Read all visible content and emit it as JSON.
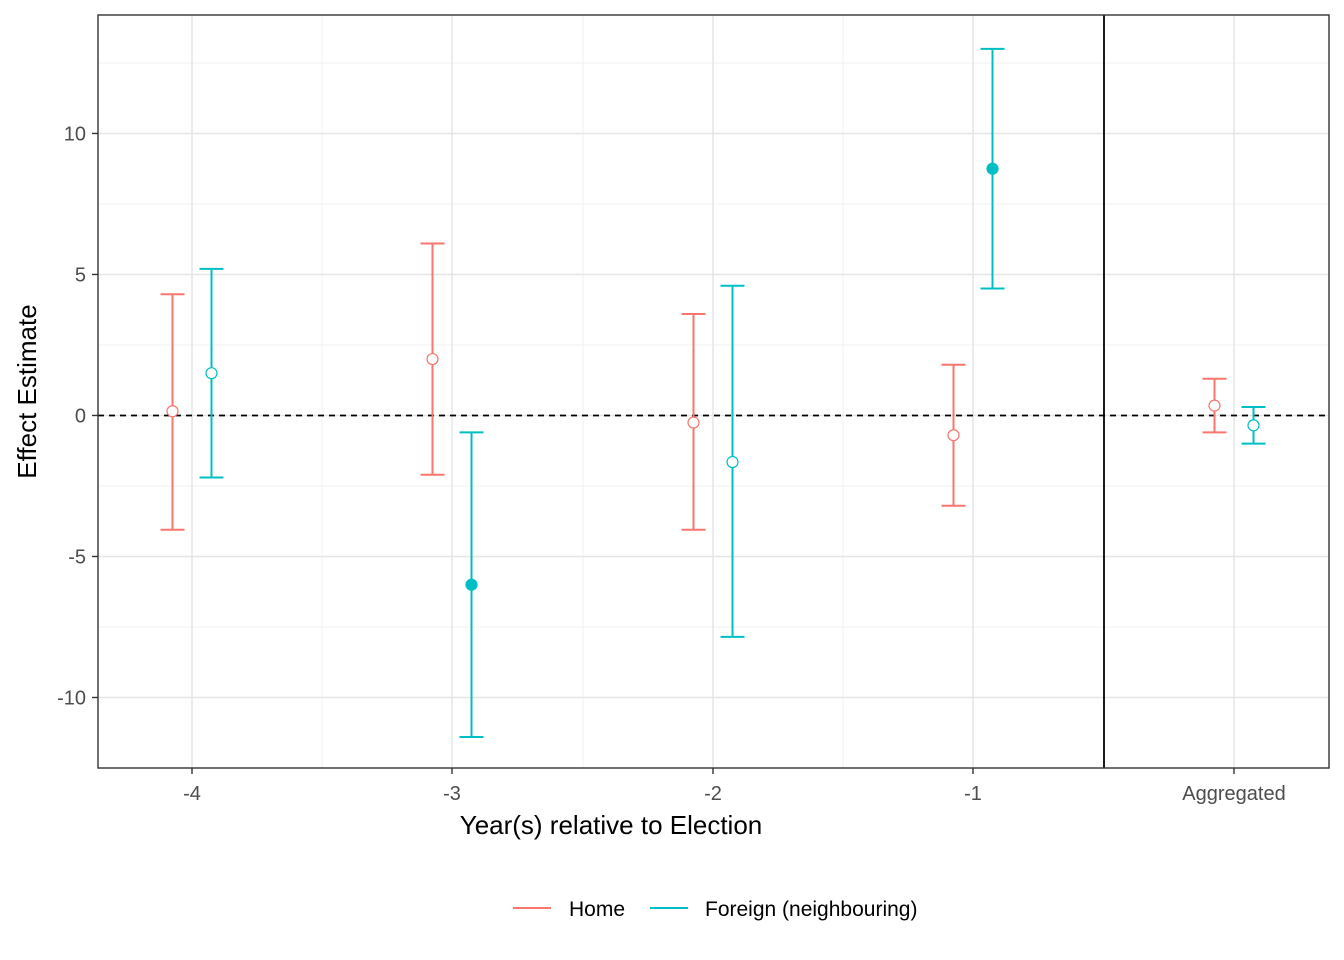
{
  "chart_data": {
    "type": "errorbar",
    "xlabel": "Year(s) relative to Election",
    "ylabel": "Effect Estimate",
    "ylim": [
      -12.5,
      14.2
    ],
    "yticks": [
      -10,
      -5,
      0,
      5,
      10
    ],
    "grid": true,
    "legend_position": "bottom",
    "reference_line": {
      "y": 0,
      "style": "dashed"
    },
    "panels": [
      {
        "name": "event-study",
        "categories": [
          "-4",
          "-3",
          "-2",
          "-1"
        ]
      },
      {
        "name": "aggregated",
        "categories": [
          "Aggregated"
        ]
      }
    ],
    "series": [
      {
        "name": "Home",
        "color": "#F8766D",
        "points": [
          {
            "x": "-4",
            "estimate": 0.15,
            "lower": -4.05,
            "upper": 4.3,
            "significant": false
          },
          {
            "x": "-3",
            "estimate": 2.0,
            "lower": -2.1,
            "upper": 6.1,
            "significant": false
          },
          {
            "x": "-2",
            "estimate": -0.25,
            "lower": -4.05,
            "upper": 3.6,
            "significant": false
          },
          {
            "x": "-1",
            "estimate": -0.7,
            "lower": -3.2,
            "upper": 1.8,
            "significant": false
          },
          {
            "x": "Aggregated",
            "estimate": 0.35,
            "lower": -0.6,
            "upper": 1.3,
            "significant": false
          }
        ]
      },
      {
        "name": "Foreign (neighbouring)",
        "color": "#00BFC4",
        "points": [
          {
            "x": "-4",
            "estimate": 1.5,
            "lower": -2.2,
            "upper": 5.2,
            "significant": false
          },
          {
            "x": "-3",
            "estimate": -6.0,
            "lower": -11.4,
            "upper": -0.6,
            "significant": true
          },
          {
            "x": "-2",
            "estimate": -1.65,
            "lower": -7.85,
            "upper": 4.6,
            "significant": false
          },
          {
            "x": "-1",
            "estimate": 8.75,
            "lower": 4.5,
            "upper": 13.0,
            "significant": true
          },
          {
            "x": "Aggregated",
            "estimate": -0.35,
            "lower": -1.0,
            "upper": 0.3,
            "significant": false
          }
        ]
      }
    ]
  }
}
